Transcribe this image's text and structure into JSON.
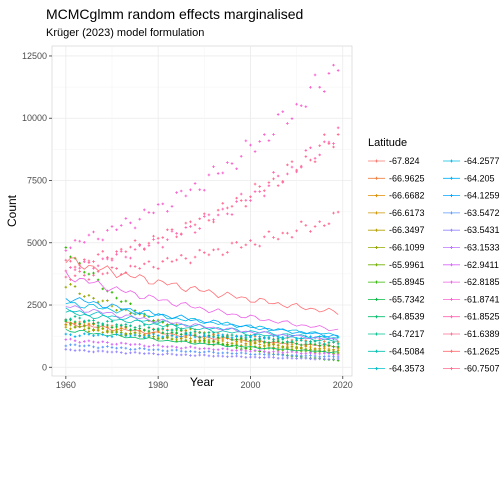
{
  "chart_data": {
    "type": "line",
    "title": "MCMCglmm random effects marginalised",
    "subtitle": "Krüger (2023) model formulation",
    "xlabel": "Year",
    "ylabel": "Count",
    "xlim": [
      1957,
      2022
    ],
    "ylim": [
      -350,
      12900
    ],
    "x_ticks": [
      1960,
      1980,
      2000,
      2020
    ],
    "y_ticks": [
      0,
      2500,
      5000,
      7500,
      10000,
      12500
    ],
    "y_tick_labels": [
      "0",
      "2500",
      "5000",
      "7500",
      "10000",
      "12500"
    ],
    "x_tick_labels": [
      "1960",
      "1980",
      "2000",
      "2020"
    ],
    "grid": true,
    "legend": {
      "title": "Latitude",
      "placement": "right",
      "columns": 2,
      "entries": [
        {
          "label": "-67.824",
          "color": "#F8766D"
        },
        {
          "label": "-66.9625",
          "color": "#EE8043"
        },
        {
          "label": "-66.6682",
          "color": "#DF8B00"
        },
        {
          "label": "-66.6173",
          "color": "#CB9500"
        },
        {
          "label": "-66.3497",
          "color": "#B39F00"
        },
        {
          "label": "-66.1099",
          "color": "#96A800"
        },
        {
          "label": "-65.9961",
          "color": "#6FB000"
        },
        {
          "label": "-65.8945",
          "color": "#2FB600"
        },
        {
          "label": "-65.7342",
          "color": "#00BB3F"
        },
        {
          "label": "-64.8539",
          "color": "#00BE6D"
        },
        {
          "label": "-64.7217",
          "color": "#00C091"
        },
        {
          "label": "-64.5084",
          "color": "#00C1B0"
        },
        {
          "label": "-64.3573",
          "color": "#00BFCB"
        },
        {
          "label": "-64.2577",
          "color": "#00BBE3"
        },
        {
          "label": "-64.205",
          "color": "#00B3F5"
        },
        {
          "label": "-64.1259",
          "color": "#00A7FF"
        },
        {
          "label": "-63.5472",
          "color": "#5B98FF"
        },
        {
          "label": "-63.5431",
          "color": "#9487FF"
        },
        {
          "label": "-63.1533",
          "color": "#BB76FF"
        },
        {
          "label": "-62.9411",
          "color": "#D767F9"
        },
        {
          "label": "-62.8185",
          "color": "#EB61E6"
        },
        {
          "label": "-61.8741",
          "color": "#F863CF"
        },
        {
          "label": "-61.8525",
          "color": "#FF67B1"
        },
        {
          "label": "-61.6389",
          "color": "#FF6C92"
        },
        {
          "label": "-61.2625",
          "color": "#FF6F75"
        },
        {
          "label": "-60.7507",
          "color": "#FF6C90"
        }
      ]
    },
    "x": [
      1960,
      2019
    ],
    "series": [
      {
        "name": "-67.824",
        "color": "#F8766D",
        "style": "line",
        "start": 1760,
        "end": 840
      },
      {
        "name": "-66.9625",
        "color": "#EE8043",
        "style": "points",
        "start": 1850,
        "end": 1000
      },
      {
        "name": "-66.6682",
        "color": "#DF8B00",
        "style": "points",
        "start": 1800,
        "end": 820
      },
      {
        "name": "-66.6173",
        "color": "#CB9500",
        "style": "points",
        "start": 1700,
        "end": 720
      },
      {
        "name": "-66.3497",
        "color": "#B39F00",
        "style": "points",
        "start": 1620,
        "end": 650
      },
      {
        "name": "-66.1099",
        "color": "#96A800",
        "style": "points",
        "start": 3300,
        "end": 600
      },
      {
        "name": "-65.9961",
        "color": "#6FB000",
        "style": "points",
        "start": 1750,
        "end": 560
      },
      {
        "name": "-65.8945",
        "color": "#2FB600",
        "style": "points",
        "start": 4800,
        "end": 280
      },
      {
        "name": "-65.7342",
        "color": "#00BB3F",
        "style": "points",
        "start": 1900,
        "end": 850
      },
      {
        "name": "-64.8539",
        "color": "#00BE6D",
        "style": "line",
        "start": 1500,
        "end": 600
      },
      {
        "name": "-64.7217",
        "color": "#00C091",
        "style": "points",
        "start": 2000,
        "end": 950
      },
      {
        "name": "-64.5084",
        "color": "#00C1B0",
        "style": "line",
        "start": 2200,
        "end": 1050
      },
      {
        "name": "-64.3573",
        "color": "#00BFCB",
        "style": "line",
        "start": 2300,
        "end": 1150
      },
      {
        "name": "-64.2577",
        "color": "#00BBE3",
        "style": "line",
        "start": 2600,
        "end": 1300
      },
      {
        "name": "-64.205",
        "color": "#00B3F5",
        "style": "points",
        "start": 1300,
        "end": 1200
      },
      {
        "name": "-64.1259",
        "color": "#00A7FF",
        "style": "line",
        "start": 2800,
        "end": 1250
      },
      {
        "name": "-63.5472",
        "color": "#5B98FF",
        "style": "points",
        "start": 900,
        "end": 420
      },
      {
        "name": "-63.5431",
        "color": "#9487FF",
        "style": "points",
        "start": 700,
        "end": 320
      },
      {
        "name": "-63.1533",
        "color": "#BB76FF",
        "style": "line",
        "start": 2450,
        "end": 1100
      },
      {
        "name": "-62.9411",
        "color": "#D767F9",
        "style": "points",
        "start": 1100,
        "end": 520
      },
      {
        "name": "-62.8185",
        "color": "#EB61E6",
        "style": "line",
        "start": 3700,
        "end": 1500
      },
      {
        "name": "-61.8741",
        "color": "#F863CF",
        "style": "points",
        "start": 4900,
        "end": 12200
      },
      {
        "name": "-61.8525",
        "color": "#FF67B1",
        "style": "points",
        "start": 3900,
        "end": 9400
      },
      {
        "name": "-61.6389",
        "color": "#FF6C92",
        "style": "points",
        "start": 3600,
        "end": 6000
      },
      {
        "name": "-61.2625",
        "color": "#FF6F75",
        "style": "line",
        "start": 4300,
        "end": 2200
      },
      {
        "name": "-60.7507",
        "color": "#FF6C90",
        "style": "points",
        "start": 4100,
        "end": 9300
      }
    ]
  }
}
